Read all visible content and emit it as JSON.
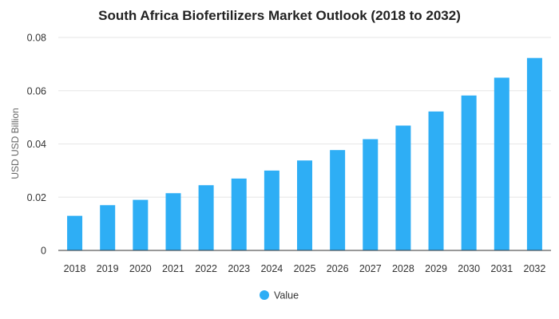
{
  "chart_data": {
    "type": "bar",
    "title": "South Africa Biofertilizers Market Outlook (2018 to 2032)",
    "xlabel": "",
    "ylabel": "USD USD Billion",
    "categories": [
      "2018",
      "2019",
      "2020",
      "2021",
      "2022",
      "2023",
      "2024",
      "2025",
      "2026",
      "2027",
      "2028",
      "2029",
      "2030",
      "2031",
      "2032"
    ],
    "series": [
      {
        "name": "Value",
        "values": [
          0.013,
          0.017,
          0.019,
          0.0215,
          0.0245,
          0.027,
          0.03,
          0.0338,
          0.0377,
          0.0418,
          0.0469,
          0.0522,
          0.0582,
          0.0649,
          0.0723
        ]
      }
    ],
    "ylim": [
      0,
      0.08
    ],
    "yticks": [
      "0",
      "0.02",
      "0.04",
      "0.06",
      "0.08"
    ],
    "ytick_values": [
      0,
      0.02,
      0.04,
      0.06,
      0.08
    ],
    "grid": true,
    "legend": "bottom",
    "colors": {
      "bar": "#2eaef5",
      "grid": "#e6e6e6",
      "axis": "#333333"
    }
  }
}
